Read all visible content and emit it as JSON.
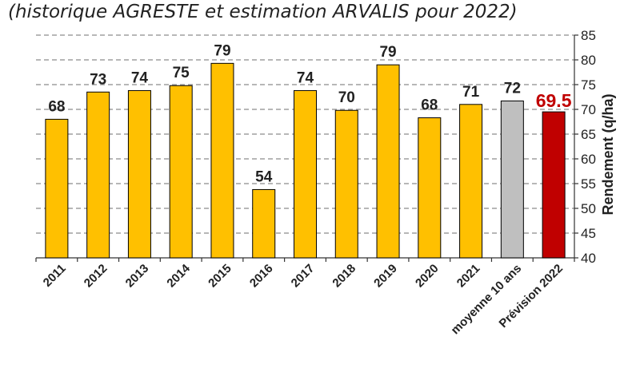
{
  "subtitle": "(historique AGRESTE et estimation ARVALIS pour 2022)",
  "chart_data": {
    "type": "bar",
    "categories": [
      "2011",
      "2012",
      "2013",
      "2014",
      "2015",
      "2016",
      "2017",
      "2018",
      "2019",
      "2020",
      "2021",
      "moyenne 10 ans",
      "Prévision 2022"
    ],
    "values": [
      68,
      73.5,
      73.8,
      74.8,
      79.3,
      53.8,
      73.8,
      69.8,
      79,
      68.3,
      71,
      71.7,
      69.5
    ],
    "data_labels": [
      "68",
      "73",
      "74",
      "75",
      "79",
      "54",
      "74",
      "70",
      "79",
      "68",
      "71",
      "72",
      "69.5"
    ],
    "bar_colors": [
      "#FFC000",
      "#FFC000",
      "#FFC000",
      "#FFC000",
      "#FFC000",
      "#FFC000",
      "#FFC000",
      "#FFC000",
      "#FFC000",
      "#FFC000",
      "#FFC000",
      "#BFBFBF",
      "#C00000"
    ],
    "label_colors": [
      "#222222",
      "#222222",
      "#222222",
      "#222222",
      "#222222",
      "#222222",
      "#222222",
      "#222222",
      "#222222",
      "#222222",
      "#222222",
      "#222222",
      "#C00000"
    ],
    "ylabel": "Rendement (q/ha)",
    "ylim": [
      40,
      85
    ],
    "yticks": [
      40,
      45,
      50,
      55,
      60,
      65,
      70,
      75,
      80,
      85
    ],
    "grid": "dashed",
    "y_axis_side": "right"
  }
}
